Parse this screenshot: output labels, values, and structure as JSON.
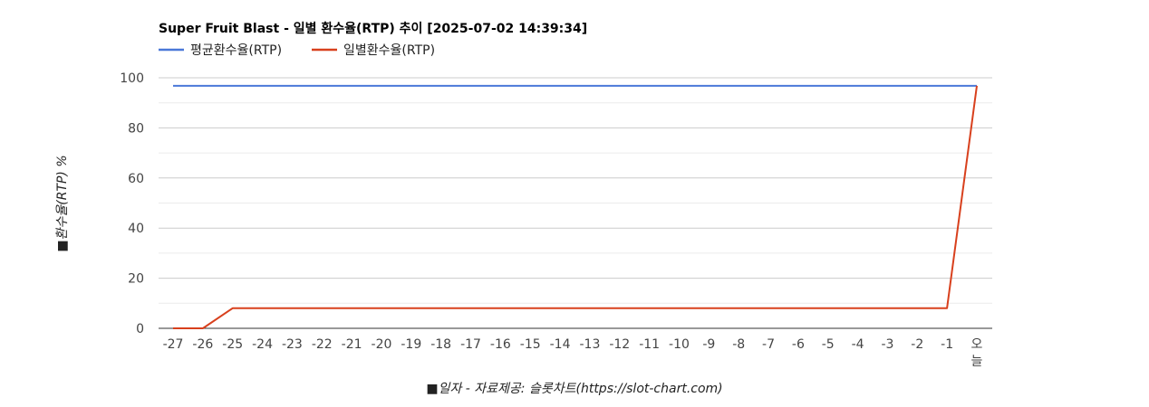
{
  "chart_data": {
    "type": "line",
    "title": "Super Fruit Blast - 일별 환수율(RTP) 추이 [2025-07-02 14:39:34]",
    "xlabel": "■일자 - 자료제공: 슬롯차트(https://slot-chart.com)",
    "ylabel": "■환수율(RTP) %",
    "categories": [
      "-27",
      "-26",
      "-25",
      "-24",
      "-23",
      "-22",
      "-21",
      "-20",
      "-19",
      "-18",
      "-17",
      "-16",
      "-15",
      "-14",
      "-13",
      "-12",
      "-11",
      "-10",
      "-9",
      "-8",
      "-7",
      "-6",
      "-5",
      "-4",
      "-3",
      "-2",
      "-1",
      "오늘"
    ],
    "ylim": [
      0,
      100
    ],
    "yticks": [
      0,
      20,
      40,
      60,
      80,
      100
    ],
    "legend_position": "top-left",
    "grid": true,
    "series": [
      {
        "name": "평균환수율(RTP)",
        "color": "#4a78d8",
        "values": [
          96.8,
          96.8,
          96.8,
          96.8,
          96.8,
          96.8,
          96.8,
          96.8,
          96.8,
          96.8,
          96.8,
          96.8,
          96.8,
          96.8,
          96.8,
          96.8,
          96.8,
          96.8,
          96.8,
          96.8,
          96.8,
          96.8,
          96.8,
          96.8,
          96.8,
          96.8,
          96.8,
          96.8
        ]
      },
      {
        "name": "일별환수율(RTP)",
        "color": "#d8401d",
        "values": [
          0,
          0,
          8,
          8,
          8,
          8,
          8,
          8,
          8,
          8,
          8,
          8,
          8,
          8,
          8,
          8,
          8,
          8,
          8,
          8,
          8,
          8,
          8,
          8,
          8,
          8,
          8,
          96.8
        ]
      }
    ]
  }
}
